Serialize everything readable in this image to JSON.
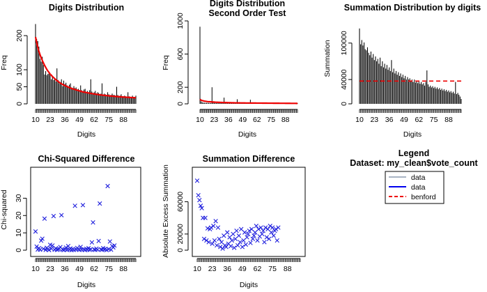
{
  "colors": {
    "bars": "#000000",
    "benford": "#ee0000",
    "points": "#2020dd",
    "data_gray": "#a8b4c4",
    "data_blue": "#0000ee"
  },
  "chart_data": [
    {
      "type": "bar",
      "title": "Digits Distribution",
      "xlabel": "Digits",
      "ylabel": "Freq",
      "x_ticks": [
        "10",
        "23",
        "36",
        "49",
        "62",
        "75",
        "88"
      ],
      "y_ticks": [
        "0",
        "50",
        "100",
        "200"
      ],
      "ylim": [
        0,
        235
      ],
      "categories_range": [
        10,
        99
      ],
      "values": [
        234,
        190,
        184,
        168,
        132,
        124,
        138,
        114,
        86,
        96,
        84,
        88,
        92,
        84,
        72,
        80,
        70,
        76,
        66,
        104,
        70,
        60,
        64,
        72,
        52,
        68,
        58,
        62,
        54,
        50,
        56,
        60,
        48,
        44,
        52,
        46,
        48,
        42,
        44,
        38,
        54,
        40,
        36,
        42,
        44,
        34,
        38,
        32,
        40,
        72,
        36,
        30,
        34,
        38,
        30,
        34,
        32,
        28,
        30,
        60,
        26,
        30,
        28,
        26,
        34,
        28,
        24,
        26,
        30,
        26,
        26,
        24,
        50,
        26,
        22,
        24,
        28,
        20,
        22,
        24,
        22,
        18,
        34,
        22,
        20,
        18,
        24,
        18,
        20,
        24
      ],
      "benford": [
        196,
        180,
        166,
        154,
        144,
        135,
        127,
        120,
        113,
        107,
        101,
        96,
        92,
        87,
        84,
        80,
        77,
        74,
        71,
        68,
        66,
        63,
        61,
        59,
        57,
        55,
        54,
        52,
        51,
        49,
        48,
        46,
        45,
        44,
        43,
        42,
        41,
        40,
        39,
        38,
        37,
        36,
        35,
        34.5,
        34,
        33,
        32.5,
        32,
        31,
        30.5,
        30,
        29.5,
        29,
        28.5,
        28,
        27.5,
        27,
        26.5,
        26,
        25.7,
        25.3,
        25,
        24.6,
        24.2,
        23.9,
        23.5,
        23.2,
        22.9,
        22.6,
        22.3,
        22,
        21.7,
        21.4,
        21.2,
        20.9,
        20.7,
        20.4,
        20.2,
        19.9,
        19.7,
        19.5,
        19.3,
        19.1,
        18.9,
        18.7,
        18.5,
        18.3,
        18.1,
        17.9,
        17.8
      ]
    },
    {
      "type": "bar",
      "title": "Digits Distribution",
      "subtitle": "Second Order Test",
      "xlabel": "Digits",
      "ylabel": "Freq",
      "x_ticks": [
        "10",
        "23",
        "36",
        "49",
        "62",
        "75",
        "88"
      ],
      "y_ticks": [
        "0",
        "200",
        "600",
        "1000"
      ],
      "ylim": [
        0,
        1000
      ],
      "categories_range": [
        10,
        99
      ],
      "values": [
        930,
        30,
        20,
        15,
        14,
        12,
        12,
        12,
        11,
        10,
        10,
        200,
        12,
        11,
        10,
        10,
        10,
        9,
        9,
        9,
        9,
        9,
        75,
        9,
        8,
        8,
        8,
        8,
        8,
        8,
        8,
        8,
        8,
        8,
        55,
        8,
        7,
        7,
        7,
        7,
        7,
        7,
        7,
        7,
        7,
        7,
        50,
        7,
        7,
        6,
        6,
        6,
        6,
        6,
        6,
        6,
        6,
        6,
        6,
        6,
        6,
        6,
        6,
        6,
        6,
        6,
        6,
        6,
        6,
        6,
        6,
        6,
        6,
        6,
        6,
        6,
        6,
        6,
        6,
        6,
        6,
        6,
        6,
        6,
        6,
        6,
        6,
        6,
        6,
        6
      ],
      "benford": [
        55,
        44,
        40,
        36,
        33,
        31,
        29,
        27,
        26,
        25,
        24,
        23,
        22,
        21,
        20,
        19.5,
        19,
        18.5,
        18,
        17.5,
        17,
        16.5,
        16,
        15.5,
        15,
        14.5,
        14,
        13.7,
        13.4,
        13.1,
        12.8,
        12.5,
        12.2,
        12,
        11.8,
        11.6,
        11.4,
        11.2,
        11,
        10.8,
        10.6,
        10.4,
        10.2,
        10,
        9.9,
        9.8,
        9.7,
        9.6,
        9.5,
        9.4,
        9.3,
        9.2,
        9.1,
        9,
        8.9,
        8.8,
        8.7,
        8.6,
        8.5,
        8.4,
        8.3,
        8.2,
        8.1,
        8,
        7.9,
        7.8,
        7.7,
        7.6,
        7.5,
        7.4,
        7.3,
        7.2,
        7.1,
        7,
        6.9,
        6.8,
        6.7,
        6.6,
        6.5,
        6.4,
        6.3,
        6.2,
        6.1,
        6,
        5.9,
        5.8,
        5.7,
        5.6,
        5.5,
        5.4
      ]
    },
    {
      "type": "bar",
      "title": "Summation Distribution by digits",
      "xlabel": "Digits",
      "ylabel": "Summation",
      "x_ticks": [
        "10",
        "23",
        "36",
        "49",
        "62",
        "75",
        "88"
      ],
      "y_ticks": [
        "0",
        "40000",
        "100000"
      ],
      "ylim": [
        0,
        125000
      ],
      "categories_range": [
        10,
        99
      ],
      "benford_level": 37500,
      "values": [
        124000,
        98000,
        105000,
        96000,
        101000,
        90000,
        88000,
        93000,
        84000,
        80000,
        86000,
        76000,
        82000,
        72000,
        78000,
        70000,
        74000,
        66000,
        76000,
        62000,
        70000,
        60000,
        66000,
        58000,
        64000,
        56000,
        60000,
        54000,
        72000,
        52000,
        58000,
        50000,
        54000,
        48000,
        52000,
        46000,
        50000,
        44000,
        48000,
        42000,
        46000,
        40000,
        44000,
        40000,
        42000,
        38000,
        40000,
        36000,
        40000,
        35000,
        38000,
        34000,
        38000,
        33000,
        36000,
        32000,
        34000,
        30000,
        36000,
        55000,
        32000,
        28000,
        30000,
        27000,
        29000,
        26000,
        28000,
        25000,
        27000,
        24000,
        26000,
        23000,
        25000,
        22000,
        24000,
        21000,
        23000,
        20000,
        22000,
        19000,
        21000,
        18000,
        20000,
        17000,
        36000,
        16000,
        18000,
        15000,
        12000,
        8000
      ]
    },
    {
      "type": "scatter",
      "title": "Chi-Squared Difference",
      "xlabel": "Digits",
      "ylabel": "Chi-squared",
      "x_ticks": [
        "10",
        "23",
        "36",
        "49",
        "62",
        "75",
        "88"
      ],
      "y_ticks": [
        "0",
        "10",
        "20",
        "30"
      ],
      "ylim": [
        0,
        37
      ],
      "xlim": [
        10,
        99
      ],
      "points": [
        [
          10,
          10.8
        ],
        [
          11,
          2.1
        ],
        [
          12,
          0.4
        ],
        [
          13,
          1.2
        ],
        [
          14,
          0.3
        ],
        [
          15,
          5.5
        ],
        [
          16,
          6.6
        ],
        [
          17,
          0.8
        ],
        [
          18,
          18.2
        ],
        [
          19,
          0.2
        ],
        [
          20,
          1.4
        ],
        [
          21,
          0.6
        ],
        [
          22,
          0.1
        ],
        [
          23,
          3.1
        ],
        [
          24,
          0.9
        ],
        [
          25,
          2.7
        ],
        [
          26,
          19.7
        ],
        [
          27,
          0.3
        ],
        [
          28,
          1.1
        ],
        [
          29,
          0.2
        ],
        [
          30,
          0.5
        ],
        [
          31,
          0.9
        ],
        [
          32,
          1.8
        ],
        [
          33,
          20.2
        ],
        [
          34,
          0.4
        ],
        [
          35,
          0.1
        ],
        [
          36,
          0.6
        ],
        [
          37,
          1.5
        ],
        [
          38,
          0.2
        ],
        [
          39,
          2.4
        ],
        [
          40,
          0.3
        ],
        [
          41,
          1.0
        ],
        [
          42,
          0.1
        ],
        [
          43,
          0.7
        ],
        [
          44,
          0.2
        ],
        [
          45,
          25.6
        ],
        [
          46,
          0.4
        ],
        [
          47,
          1.3
        ],
        [
          48,
          0.6
        ],
        [
          49,
          0.2
        ],
        [
          50,
          1.9
        ],
        [
          51,
          0.3
        ],
        [
          52,
          26.0
        ],
        [
          53,
          0.5
        ],
        [
          54,
          0.1
        ],
        [
          55,
          0.8
        ],
        [
          56,
          0.3
        ],
        [
          57,
          1.2
        ],
        [
          58,
          0.2
        ],
        [
          59,
          0.6
        ],
        [
          60,
          4.5
        ],
        [
          61,
          16.0
        ],
        [
          62,
          0.4
        ],
        [
          63,
          0.2
        ],
        [
          64,
          0.9
        ],
        [
          65,
          0.3
        ],
        [
          66,
          5.3
        ],
        [
          67,
          26.9
        ],
        [
          68,
          0.5
        ],
        [
          69,
          0.2
        ],
        [
          70,
          1.2
        ],
        [
          71,
          0.4
        ],
        [
          72,
          0.8
        ],
        [
          73,
          0.1
        ],
        [
          74,
          37.0
        ],
        [
          75,
          0.6
        ],
        [
          76,
          5.0
        ],
        [
          77,
          0.3
        ],
        [
          78,
          2.4
        ],
        [
          79,
          1.6
        ],
        [
          80,
          2.7
        ]
      ]
    },
    {
      "type": "scatter",
      "title": "Summation Difference",
      "xlabel": "Digits",
      "ylabel": "Absolute Excess Summation",
      "x_ticks": [
        "10",
        "23",
        "36",
        "49",
        "62",
        "75",
        "88"
      ],
      "y_ticks": [
        "0",
        "20000",
        "60000"
      ],
      "ylim": [
        0,
        88000
      ],
      "xlim": [
        10,
        99
      ],
      "points": [
        [
          10,
          86000
        ],
        [
          11,
          68000
        ],
        [
          12,
          62000
        ],
        [
          13,
          55000
        ],
        [
          14,
          52000
        ],
        [
          15,
          40000
        ],
        [
          16,
          14000
        ],
        [
          17,
          40000
        ],
        [
          18,
          12000
        ],
        [
          19,
          27000
        ],
        [
          20,
          10000
        ],
        [
          21,
          26000
        ],
        [
          22,
          28000
        ],
        [
          23,
          8000
        ],
        [
          24,
          30000
        ],
        [
          25,
          12000
        ],
        [
          26,
          36000
        ],
        [
          27,
          6000
        ],
        [
          28,
          28000
        ],
        [
          29,
          14000
        ],
        [
          30,
          4000
        ],
        [
          31,
          10000
        ],
        [
          32,
          2000
        ],
        [
          33,
          18000
        ],
        [
          34,
          6000
        ],
        [
          35,
          4000
        ],
        [
          36,
          22000
        ],
        [
          37,
          8000
        ],
        [
          38,
          16000
        ],
        [
          39,
          5000
        ],
        [
          40,
          12000
        ],
        [
          41,
          20000
        ],
        [
          42,
          3000
        ],
        [
          43,
          14000
        ],
        [
          44,
          24000
        ],
        [
          45,
          6000
        ],
        [
          46,
          18000
        ],
        [
          47,
          10000
        ],
        [
          48,
          26000
        ],
        [
          49,
          4000
        ],
        [
          50,
          12000
        ],
        [
          51,
          22000
        ],
        [
          52,
          7000
        ],
        [
          53,
          16000
        ],
        [
          54,
          20000
        ],
        [
          55,
          24000
        ],
        [
          56,
          9000
        ],
        [
          57,
          26000
        ],
        [
          58,
          14000
        ],
        [
          59,
          18000
        ],
        [
          60,
          22000
        ],
        [
          61,
          30000
        ],
        [
          62,
          12000
        ],
        [
          63,
          26000
        ],
        [
          64,
          17000
        ],
        [
          65,
          28000
        ],
        [
          66,
          20000
        ],
        [
          67,
          24000
        ],
        [
          68,
          10000
        ],
        [
          69,
          28000
        ],
        [
          70,
          16000
        ],
        [
          71,
          26000
        ],
        [
          72,
          14000
        ],
        [
          73,
          30000
        ],
        [
          74,
          22000
        ],
        [
          75,
          28000
        ],
        [
          76,
          18000
        ],
        [
          77,
          24000
        ],
        [
          78,
          26000
        ],
        [
          79,
          12000
        ],
        [
          80,
          28000
        ]
      ]
    }
  ],
  "legend": {
    "title": "Legend",
    "dataset": "Dataset: my_clean$vote_count",
    "entries": [
      {
        "label": "data",
        "style": "data_gray"
      },
      {
        "label": "data",
        "style": "data_blue"
      },
      {
        "label": "benford",
        "style": "benford"
      }
    ]
  }
}
